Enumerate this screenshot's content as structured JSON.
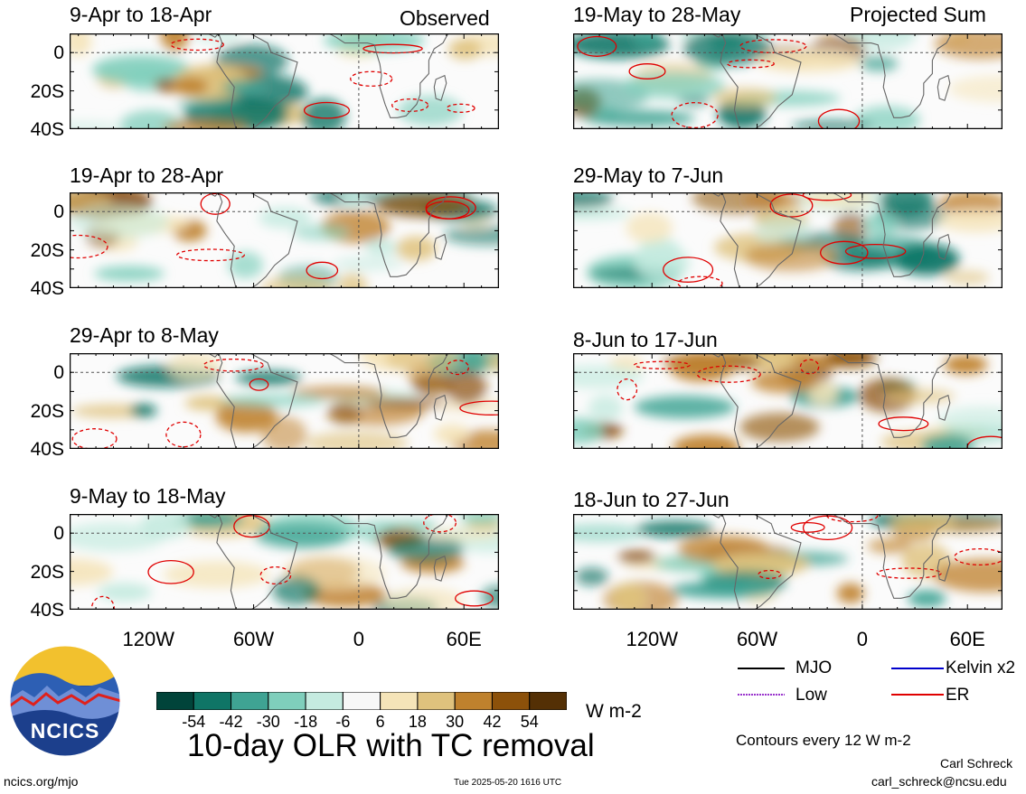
{
  "header": {
    "observed_label": "Observed",
    "projected_label": "Projected Sum"
  },
  "panels_left": [
    {
      "title": "9-Apr to 18-Apr"
    },
    {
      "title": "19-Apr to 28-Apr"
    },
    {
      "title": "29-Apr to 8-May"
    },
    {
      "title": "9-May to 18-May"
    }
  ],
  "panels_right": [
    {
      "title": "19-May to 28-May"
    },
    {
      "title": "29-May to 7-Jun"
    },
    {
      "title": "8-Jun to 17-Jun"
    },
    {
      "title": "18-Jun to 27-Jun"
    }
  ],
  "chart_data": {
    "type": "heatmap",
    "title": "10-day OLR with TC removal",
    "units": "W m-2",
    "y_ticks": [
      "0",
      "20S",
      "40S"
    ],
    "x_ticks": [
      "120W",
      "60W",
      "0",
      "60E"
    ],
    "lat_range": [
      -40,
      10
    ],
    "lon_range": [
      -165,
      80
    ],
    "colorbar": {
      "ticks": [
        "-54",
        "-42",
        "-30",
        "-18",
        "-6",
        "6",
        "18",
        "30",
        "42",
        "54"
      ],
      "colors": [
        "#01443a",
        "#0f7566",
        "#3fa393",
        "#7fcfbc",
        "#c5ebe0",
        "#f7f7f7",
        "#f5e4b8",
        "#dfc27d",
        "#bf812d",
        "#8c510a",
        "#543005"
      ]
    },
    "contour_interval": "Contours every 12 W m-2",
    "legend": [
      {
        "name": "MJO",
        "color": "#000000",
        "style": "solid"
      },
      {
        "name": "Kelvin x2",
        "color": "#0000cc",
        "style": "solid"
      },
      {
        "name": "Low",
        "color": "#9933cc",
        "style": "dotted"
      },
      {
        "name": "ER",
        "color": "#e00000",
        "style": "solid"
      }
    ]
  },
  "footer": {
    "logo_text": "NCICS",
    "site": "ncics.org/mjo",
    "timestamp": "Tue 2025-05-20 1616 UTC",
    "author": "Carl Schreck",
    "email": "carl_schreck@ncsu.edu"
  }
}
